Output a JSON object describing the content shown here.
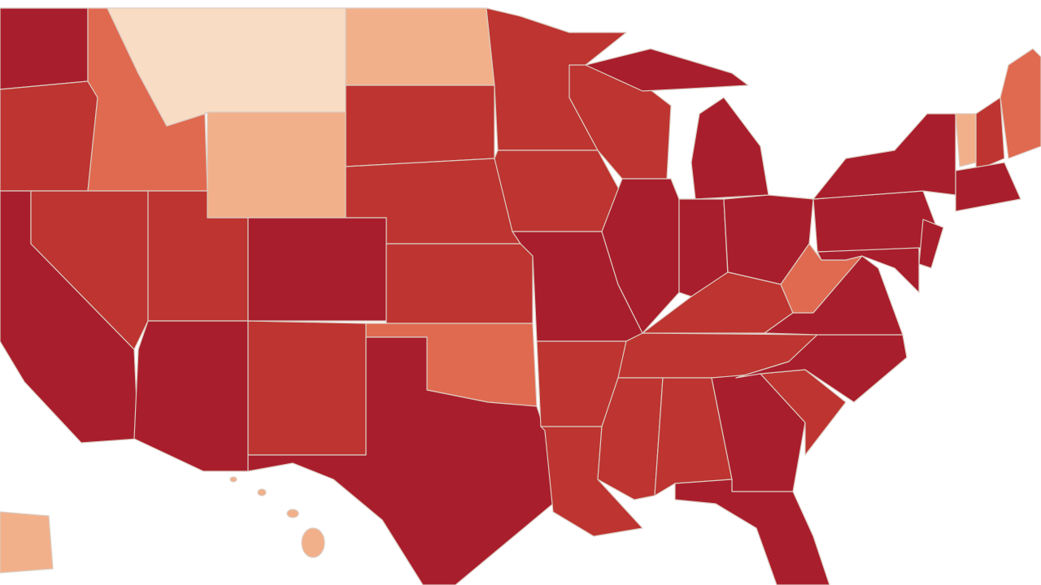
{
  "map": {
    "palette": [
      "#a91e2c",
      "#bd3430",
      "#e06a50",
      "#f2b08a",
      "#f8dcc4"
    ]
  }
}
